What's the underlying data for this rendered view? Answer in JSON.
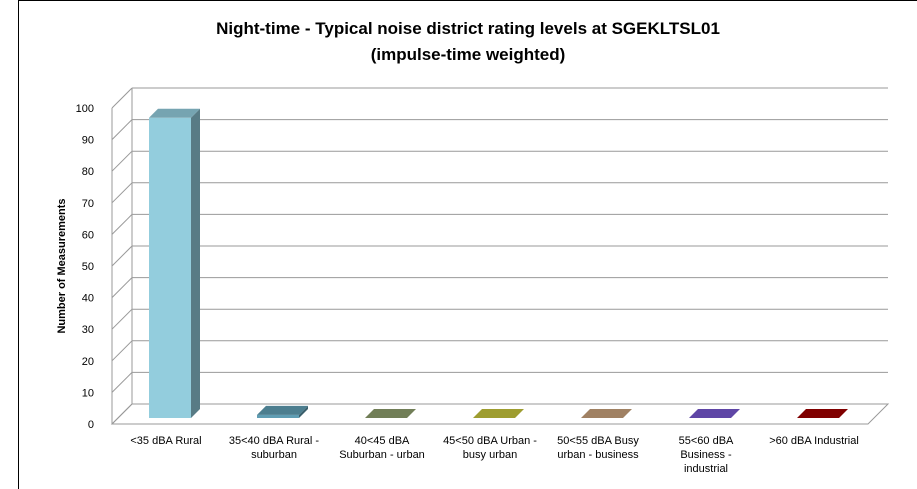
{
  "chart_data": {
    "type": "bar3d",
    "title": [
      "Night-time - Typical noise district rating levels at SGEKLTSL01",
      "(impulse-time weighted)"
    ],
    "ylabel": "Number of Measurements",
    "categories": [
      [
        "<35 dBA Rural"
      ],
      [
        "35<40 dBA Rural -",
        "suburban"
      ],
      [
        "40<45 dBA",
        "Suburban - urban"
      ],
      [
        "45<50 dBA Urban -",
        "busy urban"
      ],
      [
        "50<55 dBA Busy",
        "urban - business"
      ],
      [
        "55<60 dBA",
        "Business  -",
        "industrial"
      ],
      [
        ">60 dBA Industrial"
      ]
    ],
    "values": [
      95,
      1,
      0,
      0,
      0,
      0,
      0
    ],
    "colors": [
      "#93cddd",
      "#5f9db3",
      "#8d9d6d",
      "#c5c43c",
      "#c8a17c",
      "#7757cf",
      "#a00000"
    ],
    "ylim": [
      0,
      100
    ],
    "yticks": [
      0,
      10,
      20,
      30,
      40,
      50,
      60,
      70,
      80,
      90,
      100
    ],
    "grid": true
  }
}
